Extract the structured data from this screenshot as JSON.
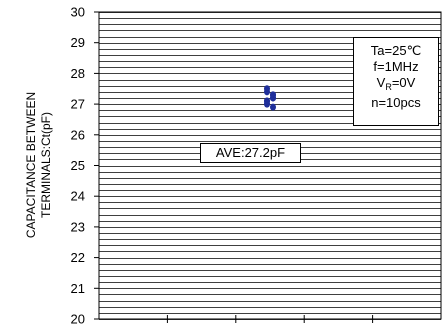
{
  "chart_data": {
    "type": "scatter",
    "ylabel_line1": "CAPACITANCE BETWEEN",
    "ylabel_line2": "TERMINALS:Ct(pF)",
    "xlabel": "",
    "ylim": [
      20,
      30
    ],
    "y_ticks": [
      "20",
      "21",
      "22",
      "23",
      "24",
      "25",
      "26",
      "27",
      "28",
      "29",
      "30"
    ],
    "x_tick_count": 5,
    "grid": "horizontal",
    "point_color": "#1f2f9a",
    "points": [
      {
        "x": 0.5,
        "y": 27.5
      },
      {
        "x": 0.5,
        "y": 27.3
      },
      {
        "x": 0.5,
        "y": 27.1
      },
      {
        "x": 0.5,
        "y": 26.9
      },
      {
        "x": 0.5,
        "y": 27.4
      },
      {
        "x": 0.5,
        "y": 27.2
      },
      {
        "x": 0.5,
        "y": 27.0
      },
      {
        "x": 0.5,
        "y": 27.3
      },
      {
        "x": 0.5,
        "y": 27.1
      },
      {
        "x": 0.5,
        "y": 27.2
      }
    ],
    "conditions": {
      "ta": "Ta=25℃",
      "freq": "f=1MHz",
      "vr_prefix": "V",
      "vr_sub": "R",
      "vr_value": "=0V",
      "n": "n=10pcs"
    },
    "average_label": "AVE:27.2pF"
  }
}
